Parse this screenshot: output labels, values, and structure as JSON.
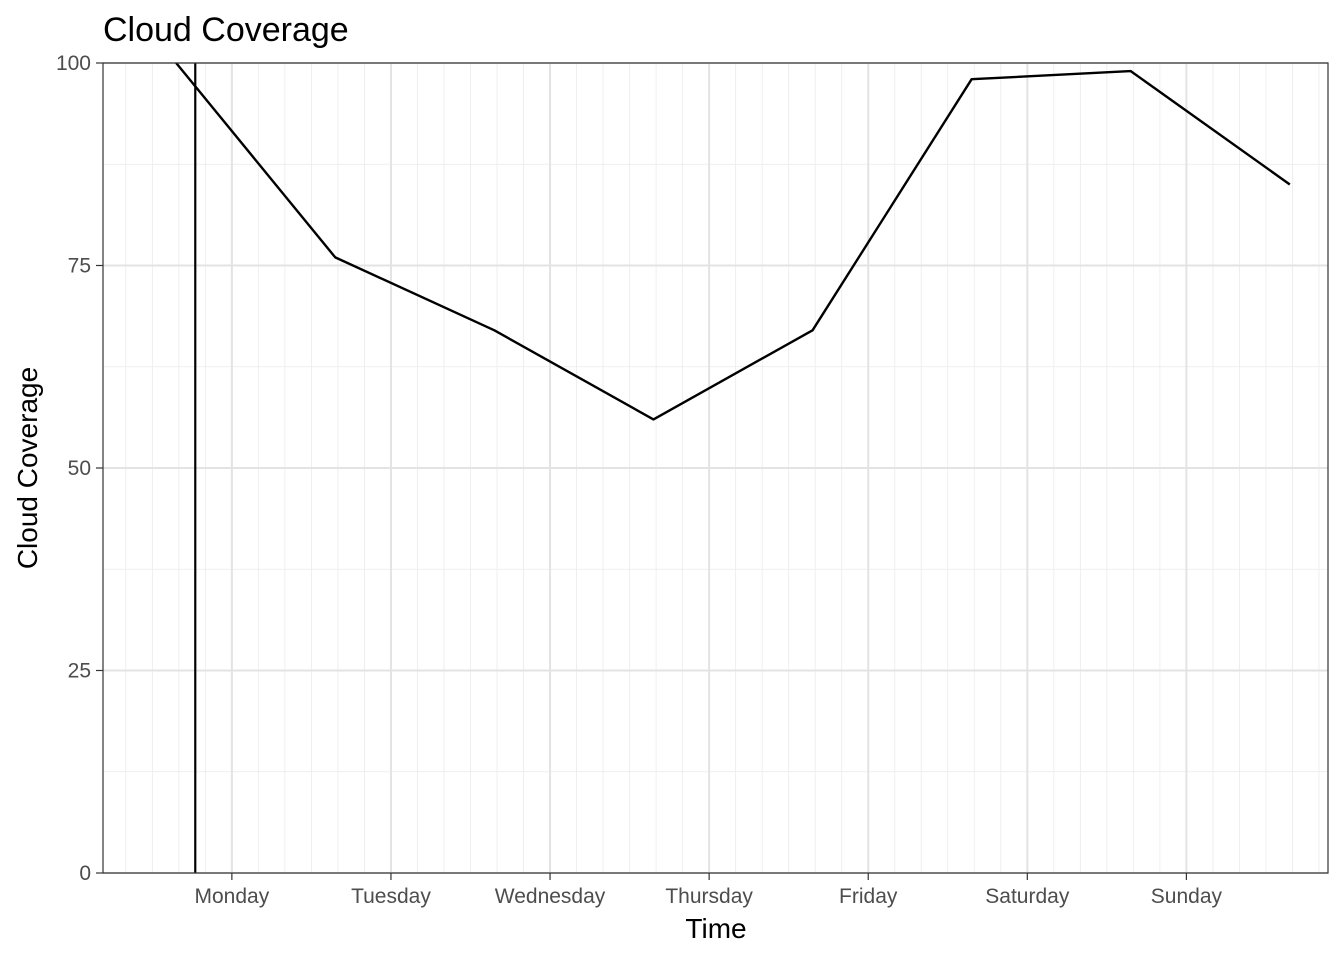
{
  "chart_data": {
    "type": "line",
    "title": "Cloud Coverage",
    "xlabel": "Time",
    "ylabel": "Cloud Coverage",
    "x_tick_labels": [
      "Monday",
      "Tuesday",
      "Wednesday",
      "Thursday",
      "Friday",
      "Saturday",
      "Sunday"
    ],
    "x_tick_positions": [
      1,
      2,
      3,
      4,
      5,
      6,
      7
    ],
    "xlim": [
      0.19,
      7.89
    ],
    "ylim": [
      0,
      100
    ],
    "y_ticks": [
      0,
      25,
      50,
      75,
      100
    ],
    "grid": true,
    "series": [
      {
        "x": [
          0.65,
          1.65,
          2.65,
          3.65,
          4.65,
          5.65,
          6.65,
          7.65
        ],
        "values": [
          100,
          76,
          67,
          56,
          67,
          98,
          99,
          85
        ],
        "color": "#000000"
      }
    ],
    "reference_line": {
      "orientation": "vertical",
      "x": 0.77,
      "color": "#000000"
    }
  }
}
